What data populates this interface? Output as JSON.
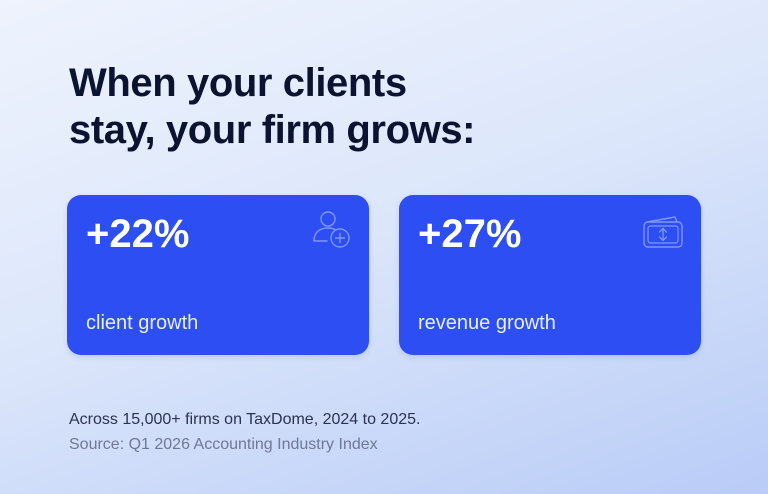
{
  "headline": {
    "line1": "When your clients",
    "line2": "stay, your firm grows:"
  },
  "stats": [
    {
      "value": "+22%",
      "label": "client growth",
      "icon": "user-add-icon"
    },
    {
      "value": "+27%",
      "label": "revenue growth",
      "icon": "wallet-icon"
    }
  ],
  "footnote": "Across 15,000+ firms on TaxDome, 2024 to 2025.",
  "source": "Source: Q1 2026 Accounting Industry Index",
  "colors": {
    "card": "#2c4ef3",
    "headline": "#0b1330",
    "background_top": "#eef3fd",
    "background_bottom": "#b9ccf7"
  }
}
